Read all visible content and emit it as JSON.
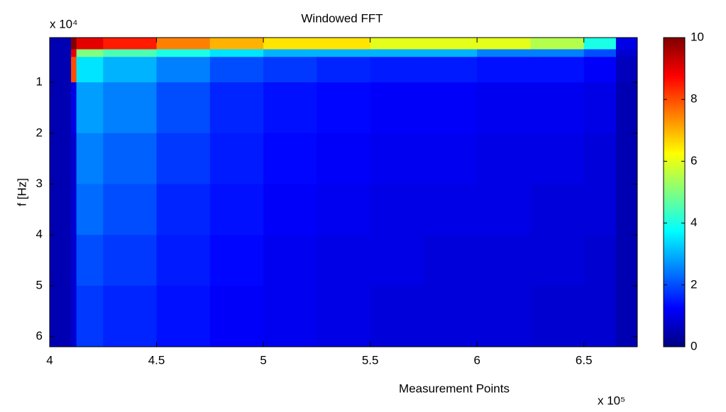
{
  "chart_data": {
    "type": "heatmap",
    "title": "Windowed FFT",
    "x_label": "Measurement Points",
    "y_label": "f [Hz]",
    "x_multiplier": "x 10⁵",
    "y_multiplier": "x 10⁴",
    "colormap": "jet",
    "y_direction": "reverse",
    "xlim": [
      400000,
      675000
    ],
    "ylim": [
      1200,
      62000
    ],
    "xticks": [
      {
        "value": 400000,
        "label": "4"
      },
      {
        "value": 450000,
        "label": "4.5"
      },
      {
        "value": 500000,
        "label": "5"
      },
      {
        "value": 550000,
        "label": "5.5"
      },
      {
        "value": 600000,
        "label": "6"
      },
      {
        "value": 650000,
        "label": "6.5"
      }
    ],
    "yticks": [
      {
        "value": 10000,
        "label": "1"
      },
      {
        "value": 20000,
        "label": "2"
      },
      {
        "value": 30000,
        "label": "3"
      },
      {
        "value": 40000,
        "label": "4"
      },
      {
        "value": 50000,
        "label": "5"
      },
      {
        "value": 60000,
        "label": "6"
      }
    ],
    "clim": [
      0,
      10
    ],
    "cticks": [
      0,
      2,
      4,
      6,
      8,
      10
    ],
    "x_edges": [
      400000,
      410000,
      412500,
      425000,
      450000,
      475000,
      500000,
      525000,
      550000,
      575000,
      600000,
      625000,
      650000,
      665000,
      675000
    ],
    "y_edges": [
      1200,
      3500,
      5000,
      10000,
      20000,
      30000,
      40000,
      50000,
      62000
    ],
    "z": [
      [
        0.5,
        10,
        9,
        8.5,
        7.5,
        7,
        6.5,
        6.5,
        6,
        6,
        6,
        5.5,
        4,
        1
      ],
      [
        0.5,
        9,
        5,
        4.5,
        4,
        3.5,
        3,
        3,
        3,
        3,
        2.5,
        2.5,
        2,
        0.8
      ],
      [
        0.5,
        8,
        3.5,
        3,
        2.5,
        2,
        1.8,
        1.6,
        1.5,
        1.5,
        1.4,
        1.4,
        1.2,
        0.6
      ],
      [
        0.5,
        1,
        2.8,
        2.5,
        2,
        1.6,
        1.4,
        1.3,
        1.2,
        1.2,
        1.1,
        1.1,
        1,
        0.5
      ],
      [
        0.5,
        0.8,
        2.5,
        2.2,
        1.8,
        1.5,
        1.3,
        1.2,
        1.1,
        1.1,
        1,
        1,
        0.9,
        0.5
      ],
      [
        0.5,
        0.8,
        2.3,
        2,
        1.6,
        1.4,
        1.2,
        1.1,
        1,
        1,
        1,
        0.9,
        0.9,
        0.5
      ],
      [
        0.5,
        0.8,
        2,
        1.8,
        1.5,
        1.3,
        1.1,
        1,
        1,
        0.9,
        0.9,
        0.9,
        0.8,
        0.5
      ],
      [
        0.5,
        0.8,
        1.8,
        1.6,
        1.4,
        1.2,
        1.1,
        1,
        0.9,
        0.9,
        0.9,
        0.8,
        0.8,
        0.5
      ]
    ]
  }
}
